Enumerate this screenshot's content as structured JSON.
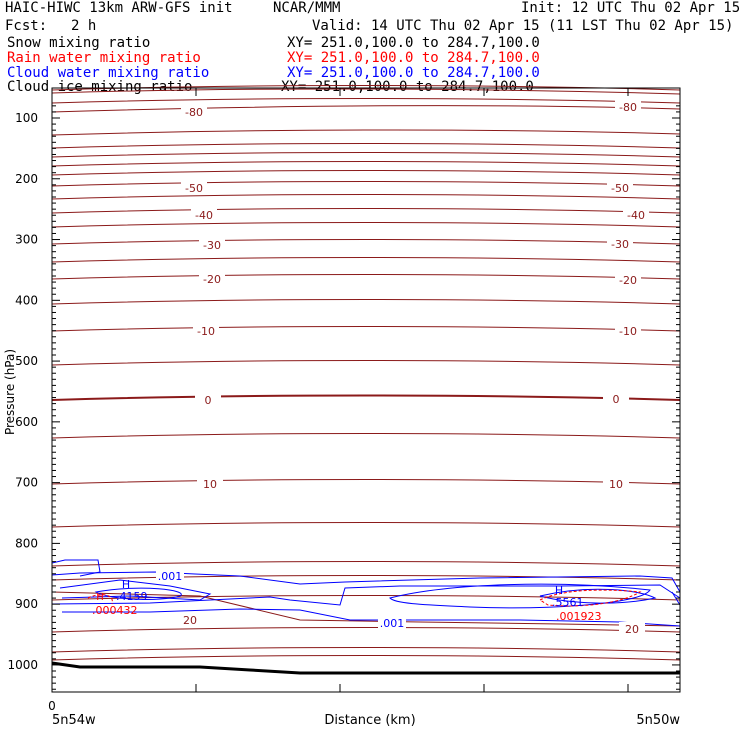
{
  "header": {
    "model": "HAIC-HIWC 13km ARW-GFS init",
    "agency": "NCAR/MMM",
    "init": "Init: 12 UTC Thu 02 Apr 15",
    "fcst_label": "Fcst:",
    "fcst_value": "2 h",
    "valid": "Valid: 14 UTC Thu 02 Apr 15 (11 LST Thu 02 Apr 15)"
  },
  "fields": [
    {
      "name": "Snow mixing ratio",
      "xy": "XY= 251.0,100.0 to 284.7,100.0",
      "color": "#000000"
    },
    {
      "name": "Rain water mixing ratio",
      "xy": "XY= 251.0,100.0 to 284.7,100.0",
      "color": "#ff0000"
    },
    {
      "name": "Cloud water mixing ratio",
      "xy": "XY= 251.0,100.0 to 284.7,100.0",
      "color": "#0000ff"
    },
    {
      "name": "Cloud ice mixing ratio",
      "xy": "XY= 251.0,100.0 to 284.7,100.0",
      "color": "#000000"
    }
  ],
  "chart_data": {
    "type": "line",
    "xlabel": "Distance (km)",
    "ylabel": "Pressure (hPa)",
    "ylim": [
      1050,
      80
    ],
    "y_ticks": [
      100,
      200,
      300,
      400,
      500,
      600,
      700,
      800,
      900,
      1000
    ],
    "x_tick_label": "0",
    "x_start_label": "5n54w",
    "x_end_label": "5n50w",
    "temperature_labels": [
      "-80",
      "-50",
      "-40",
      "-30",
      "-20",
      "-10",
      "0",
      "10",
      "20"
    ],
    "cloud_water_labels": [
      ".001",
      ".001"
    ],
    "maxima": [
      {
        "marker": "H",
        "cloud_water": ".4159",
        "rain_marker": "H",
        "rain_water": ".000432"
      },
      {
        "marker": "H",
        "cloud_water": ".5561",
        "rain_water": ".001923"
      }
    ],
    "colors": {
      "temperature": "#8b1a1a",
      "cloud_water": "#0000ff",
      "rain_water": "#ff0000",
      "ground": "#000000"
    }
  }
}
